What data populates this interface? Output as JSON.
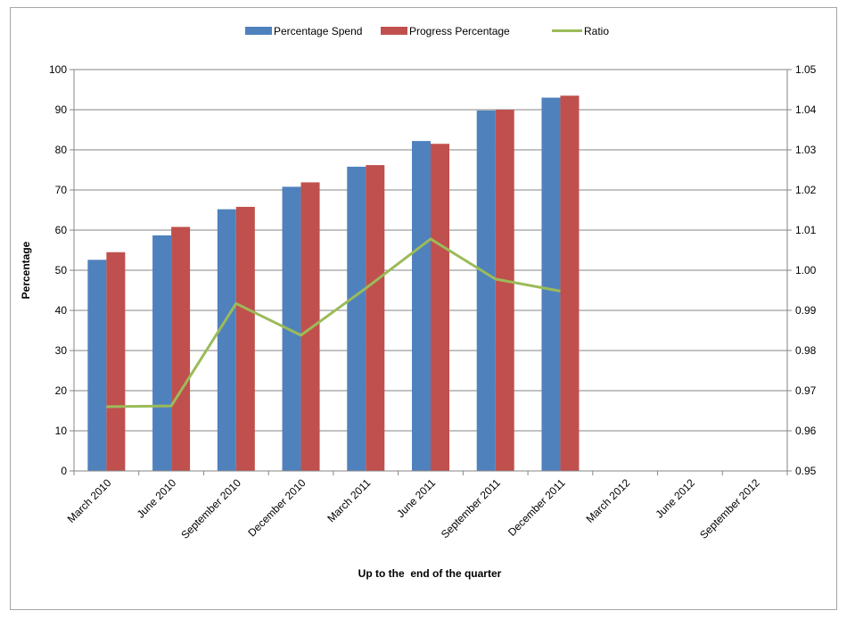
{
  "chart_data": {
    "type": "bar",
    "categories": [
      "March 2010",
      "June 2010",
      "September 2010",
      "December 2010",
      "March 2011",
      "June 2011",
      "September 2011",
      "December 2011",
      "March 2012",
      "June 2012",
      "September 2012"
    ],
    "series": [
      {
        "name": "Percentage Spend",
        "kind": "bar",
        "axis": "left",
        "color": "#4f81bd",
        "values": [
          52.6,
          58.7,
          65.2,
          70.8,
          75.8,
          82.2,
          89.8,
          93.0,
          null,
          null,
          null
        ]
      },
      {
        "name": "Progress Percentage",
        "kind": "bar",
        "axis": "left",
        "color": "#c0504d",
        "values": [
          54.5,
          60.8,
          65.8,
          71.9,
          76.2,
          81.5,
          90.0,
          93.5,
          null,
          null,
          null
        ]
      },
      {
        "name": "Ratio",
        "kind": "line",
        "axis": "right",
        "color": "#9bbb59",
        "values": [
          0.966,
          0.9662,
          0.9917,
          0.9838,
          0.9955,
          1.0078,
          0.9978,
          0.9948,
          null,
          null,
          null
        ]
      }
    ],
    "xlabel": "Up to the  end of the quarter",
    "ylabel": "Percentage",
    "ylim": [
      0,
      100
    ],
    "yticks": [
      "0",
      "10",
      "20",
      "30",
      "40",
      "50",
      "60",
      "70",
      "80",
      "90",
      "100"
    ],
    "y2lim": [
      0.95,
      1.05
    ],
    "y2ticks": [
      "0.95",
      "0.96",
      "0.97",
      "0.98",
      "0.99",
      "1.00",
      "1.01",
      "1.02",
      "1.03",
      "1.04",
      "1.05"
    ],
    "grid": true,
    "legend": "top-center"
  }
}
